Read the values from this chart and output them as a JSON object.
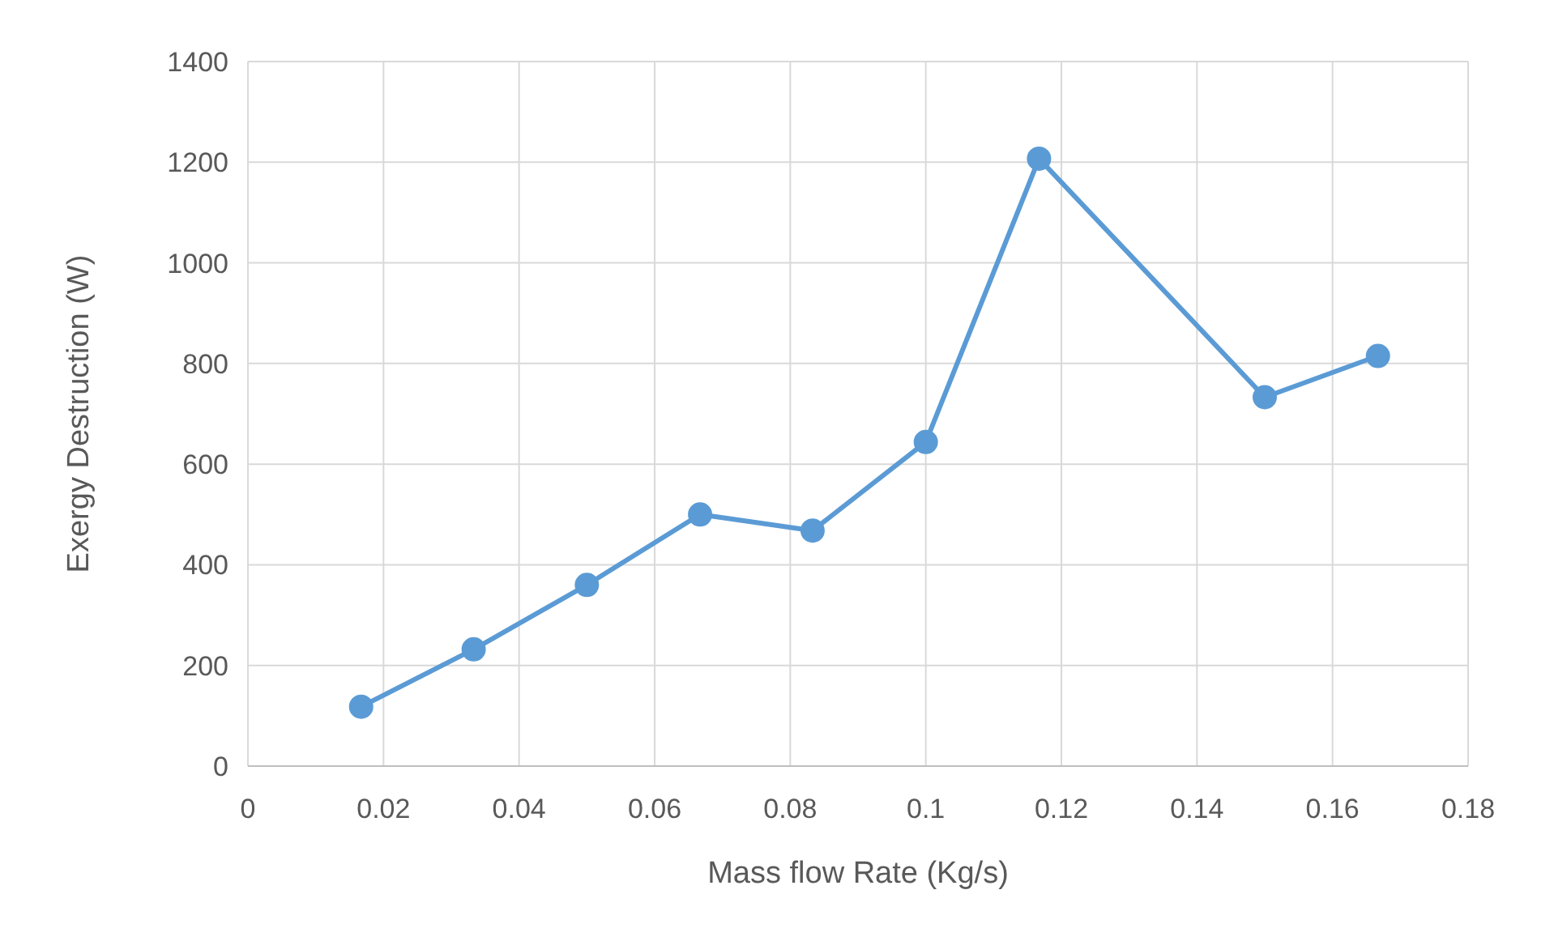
{
  "chart_data": {
    "type": "line",
    "xlabel": "Mass flow Rate (Kg/s)",
    "ylabel": "Exergy Destruction (W)",
    "x": [
      0.0167,
      0.0333,
      0.05,
      0.0667,
      0.0833,
      0.1,
      0.1167,
      0.15,
      0.1667
    ],
    "series": [
      {
        "color": "#5b9bd5",
        "values": [
          118,
          232,
          360,
          500,
          468,
          644,
          1207,
          733,
          815
        ]
      }
    ],
    "xlim": [
      0,
      0.18
    ],
    "xticks": [
      0,
      0.02,
      0.04,
      0.06,
      0.08,
      0.1,
      0.12,
      0.14,
      0.16,
      0.18
    ],
    "ylim": [
      0,
      1400
    ],
    "yticks": [
      0,
      200,
      400,
      600,
      800,
      1000,
      1200,
      1400
    ],
    "grid": true,
    "marker": "circle",
    "line_style": "solid",
    "legend": false
  }
}
